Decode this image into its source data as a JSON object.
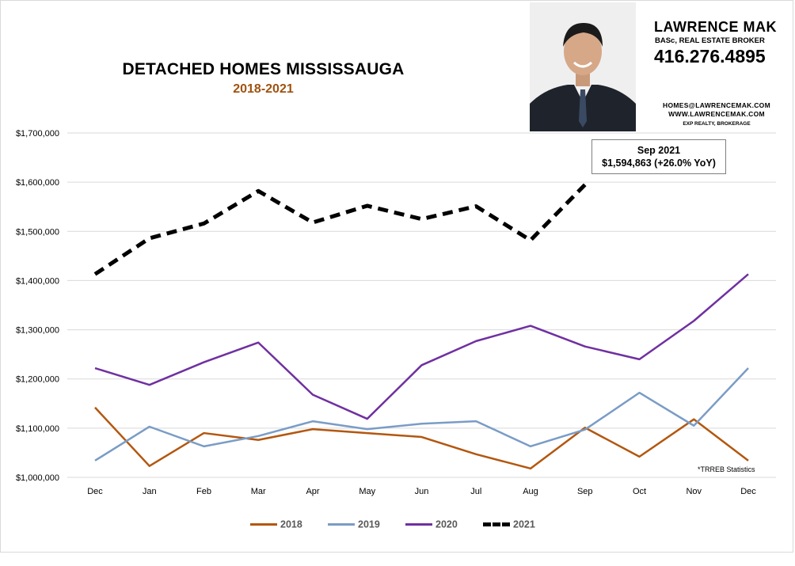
{
  "header": {
    "title": "DETACHED HOMES MISSISSAUGA",
    "subtitle": "2018-2021"
  },
  "agent": {
    "name": "LAWRENCE MAK",
    "role": "BASc, REAL ESTATE BROKER",
    "phone": "416.276.4895",
    "email": "HOMES@LAWRENCEMAK.COM",
    "website": "WWW.LAWRENCEMAK.COM",
    "brokerage": "EXP REALTY, BROKERAGE"
  },
  "callout": {
    "line1": "Sep 2021",
    "line2": "$1,594,863  (+26.0%  YoY)"
  },
  "source_note": "*TRREB Statistics",
  "chart_data": {
    "type": "line",
    "title": "DETACHED HOMES MISSISSAUGA",
    "subtitle": "2018-2021",
    "xlabel": "",
    "ylabel": "",
    "categories": [
      "Dec",
      "Jan",
      "Feb",
      "Mar",
      "Apr",
      "May",
      "Jun",
      "Jul",
      "Aug",
      "Sep",
      "Oct",
      "Nov",
      "Dec"
    ],
    "ylim": [
      1000000,
      1700000
    ],
    "yticks": [
      "$1,000,000",
      "$1,100,000",
      "$1,200,000",
      "$1,300,000",
      "$1,400,000",
      "$1,500,000",
      "$1,600,000",
      "$1,700,000"
    ],
    "grid": true,
    "legend_position": "bottom",
    "series": [
      {
        "name": "2018",
        "color": "#b3570f",
        "dash": "solid",
        "values": [
          1142000,
          1023000,
          1090000,
          1076000,
          1098000,
          1090000,
          1082000,
          1047000,
          1018000,
          1101000,
          1042000,
          1118000,
          1034000
        ]
      },
      {
        "name": "2019",
        "color": "#7a9cc6",
        "dash": "solid",
        "values": [
          1034000,
          1103000,
          1063000,
          1084000,
          1114000,
          1098000,
          1109000,
          1114000,
          1063000,
          1097000,
          1172000,
          1105000,
          1222000
        ]
      },
      {
        "name": "2020",
        "color": "#7030a0",
        "dash": "solid",
        "values": [
          1222000,
          1188000,
          1234000,
          1274000,
          1168000,
          1119000,
          1228000,
          1277000,
          1308000,
          1266000,
          1240000,
          1318000,
          1413000
        ]
      },
      {
        "name": "2021",
        "color": "#000000",
        "dash": "dashed",
        "values": [
          1413000,
          1486000,
          1516000,
          1582000,
          1518000,
          1552000,
          1525000,
          1551000,
          1482000,
          1594863,
          null,
          null,
          null
        ]
      }
    ]
  }
}
